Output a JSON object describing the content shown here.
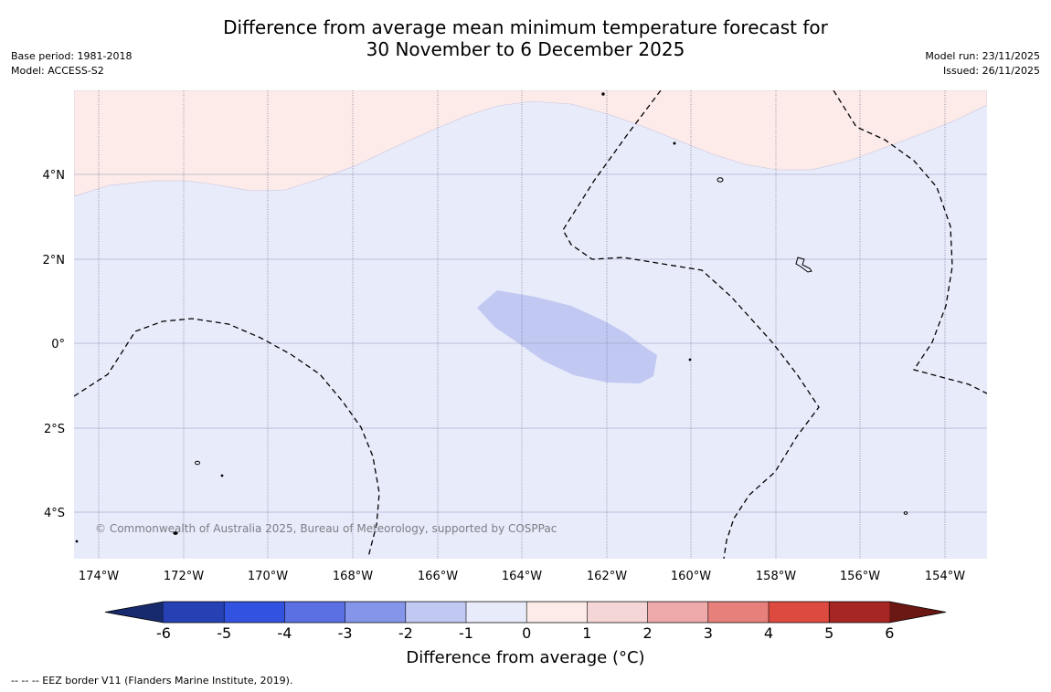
{
  "title": {
    "line1": "Difference from average mean minimum temperature forecast for",
    "line2": "30 November to 6 December 2025"
  },
  "meta_left": {
    "base_period": "Base period: 1981-2018",
    "model": "Model: ACCESS-S2"
  },
  "meta_right": {
    "model_run": "Model run: 23/11/2025",
    "issued": "Issued: 26/11/2025"
  },
  "map": {
    "copyright": "© Commonwealth of Australia 2025, Bureau of Meteorology, supported by COSPPac",
    "lon_labels": [
      "174°W",
      "172°W",
      "170°W",
      "168°W",
      "166°W",
      "164°W",
      "162°W",
      "160°W",
      "158°W",
      "156°W",
      "154°W"
    ],
    "lat_labels": [
      "4°N",
      "2°N",
      "0°",
      "2°S",
      "4°S"
    ],
    "colors": {
      "ocean_anomaly_minus1_to_0": "#e8ebfa",
      "anomaly_0_to_1": "#fcebe8",
      "anomaly_minus2_to_minus1": "#c1c8f2",
      "eez_border": "#000000"
    }
  },
  "colorbar": {
    "label": "Difference from average (°C)",
    "ticks": [
      "-6",
      "-5",
      "-4",
      "-3",
      "-2",
      "-1",
      "0",
      "1",
      "2",
      "3",
      "4",
      "5",
      "6"
    ],
    "colors": [
      "#172a6e",
      "#2641b3",
      "#3252e0",
      "#5a70e3",
      "#8596ea",
      "#c1c8f2",
      "#e8ebfa",
      "#fcebe8",
      "#f5d6d6",
      "#eeaaaa",
      "#e77f7a",
      "#dc4a40",
      "#a52622",
      "#6b1714"
    ]
  },
  "footer": "--  --  -- EEZ border V11 (Flanders Marine Institute, 2019)."
}
